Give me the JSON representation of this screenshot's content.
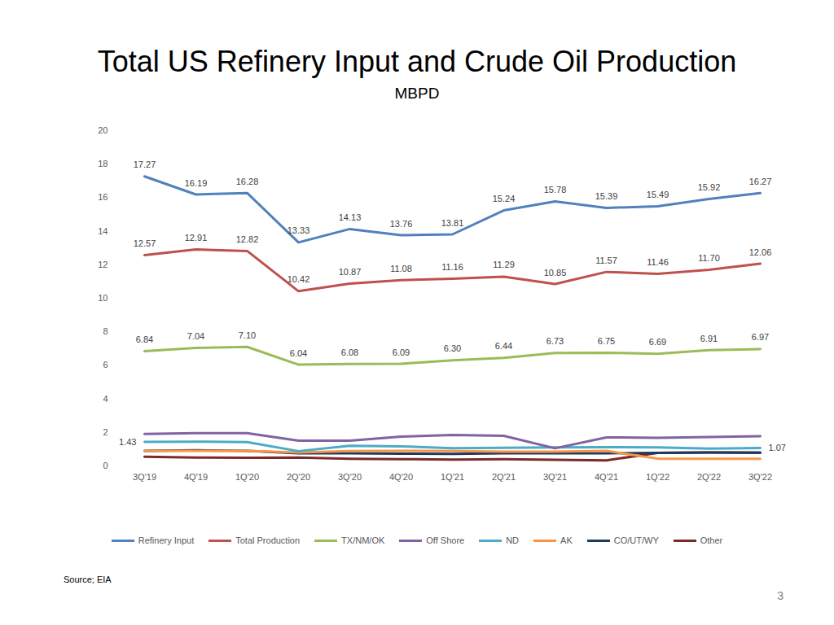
{
  "chart_data": {
    "type": "line",
    "title": "Total US Refinery Input and Crude Oil Production",
    "subtitle": "MBPD",
    "source": "Source; EIA",
    "page_number": "3",
    "categories": [
      "3Q'19",
      "4Q'19",
      "1Q'20",
      "2Q'20",
      "3Q'20",
      "4Q'20",
      "1Q'21",
      "2Q'21",
      "3Q'21",
      "4Q'21",
      "1Q'22",
      "2Q'22",
      "3Q'22"
    ],
    "ylim": [
      0,
      20
    ],
    "yticks": [
      0,
      2,
      4,
      6,
      8,
      10,
      12,
      14,
      16,
      18,
      20
    ],
    "grid": false,
    "legend": "bottom",
    "series": [
      {
        "name": "Refinery Input",
        "color": "#4f81bd",
        "data_labels": true,
        "values": [
          17.27,
          16.19,
          16.28,
          13.33,
          14.13,
          13.76,
          13.81,
          15.24,
          15.78,
          15.39,
          15.49,
          15.92,
          16.27
        ]
      },
      {
        "name": "Total Production",
        "color": "#c0504d",
        "data_labels": true,
        "values": [
          12.57,
          12.91,
          12.82,
          10.42,
          10.87,
          11.08,
          11.16,
          11.29,
          10.85,
          11.57,
          11.46,
          11.7,
          12.06
        ]
      },
      {
        "name": "TX/NM/OK",
        "color": "#9bbb59",
        "data_labels": true,
        "values": [
          6.84,
          7.04,
          7.1,
          6.04,
          6.08,
          6.09,
          6.3,
          6.44,
          6.73,
          6.75,
          6.69,
          6.91,
          6.97
        ]
      },
      {
        "name": "Off Shore",
        "color": "#8064a2",
        "values": [
          1.9,
          1.95,
          1.95,
          1.5,
          1.5,
          1.75,
          1.85,
          1.8,
          1.05,
          1.7,
          1.68,
          1.72,
          1.77
        ]
      },
      {
        "name": "ND",
        "color": "#4bacc6",
        "values": [
          1.43,
          1.45,
          1.42,
          0.88,
          1.2,
          1.17,
          1.05,
          1.08,
          1.1,
          1.12,
          1.1,
          1.03,
          1.07
        ],
        "value_labels": [
          "1.43",
          null,
          null,
          null,
          null,
          null,
          null,
          null,
          null,
          null,
          null,
          null,
          "1.07"
        ]
      },
      {
        "name": "AK",
        "color": "#f79646",
        "values": [
          0.9,
          0.9,
          0.9,
          0.8,
          0.88,
          0.9,
          0.88,
          0.85,
          0.85,
          0.9,
          0.43,
          0.43,
          0.43
        ]
      },
      {
        "name": "CO/UT/WY",
        "color": "#1f3a60",
        "values": [
          0.9,
          0.93,
          0.9,
          0.75,
          0.75,
          0.73,
          0.72,
          0.75,
          0.75,
          0.75,
          0.78,
          0.8,
          0.8
        ]
      },
      {
        "name": "Other",
        "color": "#7b2a28",
        "values": [
          0.55,
          0.5,
          0.48,
          0.5,
          0.42,
          0.4,
          0.38,
          0.4,
          0.36,
          0.33,
          0.78,
          0.8,
          0.78
        ]
      }
    ]
  }
}
